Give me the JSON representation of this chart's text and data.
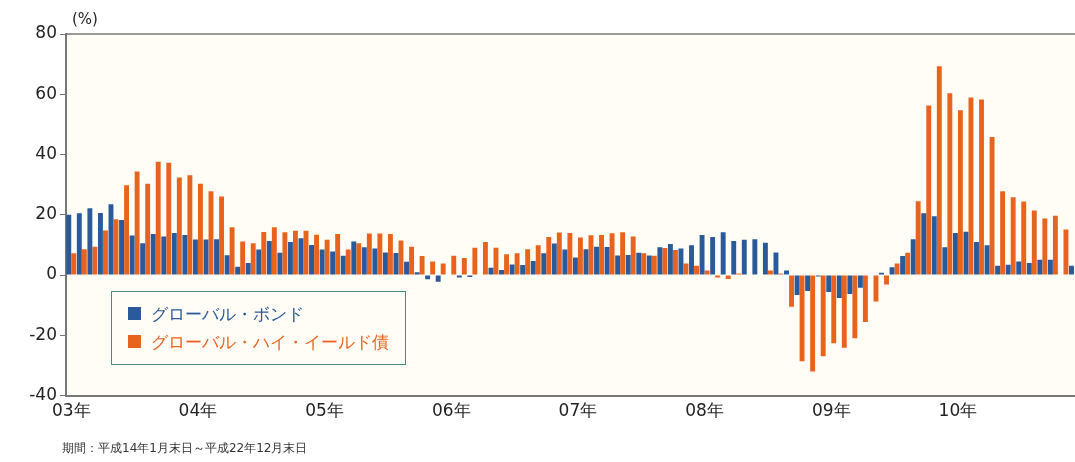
{
  "chart_data": {
    "type": "bar",
    "ylabel": "(%)",
    "categories": [
      "03年",
      null,
      null,
      null,
      null,
      null,
      null,
      null,
      null,
      null,
      null,
      null,
      "04年",
      null,
      null,
      null,
      null,
      null,
      null,
      null,
      null,
      null,
      null,
      null,
      "05年",
      null,
      null,
      null,
      null,
      null,
      null,
      null,
      null,
      null,
      null,
      null,
      "06年",
      null,
      null,
      null,
      null,
      null,
      null,
      null,
      null,
      null,
      null,
      null,
      "07年",
      null,
      null,
      null,
      null,
      null,
      null,
      null,
      null,
      null,
      null,
      null,
      "08年",
      null,
      null,
      null,
      null,
      null,
      null,
      null,
      null,
      null,
      null,
      null,
      "09年",
      null,
      null,
      null,
      null,
      null,
      null,
      null,
      null,
      null,
      null,
      null,
      "10年",
      null,
      null,
      null,
      null,
      null,
      null,
      null,
      null,
      null,
      null,
      null
    ],
    "series": [
      {
        "name": "グローバル・ボンド",
        "color": "#2a5a9a",
        "values": [
          20.0,
          20.5,
          22.2,
          20.6,
          23.5,
          18.3,
          13.1,
          10.6,
          13.6,
          12.8,
          14.0,
          13.3,
          11.8,
          11.8,
          11.9,
          6.6,
          2.8,
          4.0,
          8.5,
          11.3,
          7.4,
          11.0,
          12.2,
          10.0,
          8.5,
          7.8,
          6.4,
          11.1,
          9.2,
          8.8,
          7.5,
          7.3,
          4.4,
          0.9,
          -1.4,
          -2.2,
          null,
          -0.8,
          -0.6,
          null,
          2.4,
          1.7,
          3.5,
          3.3,
          4.7,
          7.2,
          10.5,
          8.5,
          5.8,
          8.6,
          9.4,
          9.3,
          6.5,
          6.7,
          7.4,
          6.5,
          9.2,
          10.3,
          8.8,
          9.9,
          13.3,
          12.6,
          14.2,
          11.3,
          11.7,
          11.9,
          10.7,
          7.5,
          1.5,
          -6.6,
          -5.3,
          -0.5,
          -5.6,
          -7.6,
          -6.3,
          -4.2,
          0,
          0.8,
          2.6,
          6.3,
          11.9,
          20.5,
          19.5,
          9.2,
          14.0,
          14.4,
          11.0,
          9.9,
          3.1,
          3.4,
          4.5,
          4.0,
          5.1,
          5.1,
          null,
          3.1
        ]
      },
      {
        "name": "グローバル・ハイ・イールド債",
        "color": "#e8641e",
        "values": [
          7.2,
          8.6,
          9.4,
          14.8,
          18.5,
          29.8,
          34.4,
          30.3,
          37.6,
          37.3,
          32.4,
          33.1,
          30.3,
          27.8,
          26.1,
          15.9,
          11.1,
          10.6,
          14.3,
          15.9,
          14.2,
          14.7,
          14.7,
          13.4,
          11.7,
          13.6,
          8.5,
          10.6,
          13.8,
          13.8,
          13.6,
          11.5,
          9.4,
          6.3,
          4.5,
          3.8,
          6.4,
          5.7,
          9.1,
          11.0,
          9.1,
          6.9,
          7.2,
          8.6,
          9.9,
          12.6,
          14.1,
          14.0,
          12.5,
          13.2,
          13.3,
          13.9,
          14.2,
          12.8,
          7.2,
          6.4,
          9.0,
          8.3,
          3.8,
          3.1,
          1.5,
          -0.8,
          -1.3,
          0.5,
          null,
          null,
          1.5,
          0.5,
          -10.5,
          -28.6,
          -32.0,
          -26.9,
          -22.6,
          -24.1,
          -21.0,
          -15.6,
          -8.8,
          -3.1,
          3.8,
          7.4,
          24.5,
          56.3,
          69.3,
          60.3,
          54.7,
          58.9,
          58.3,
          45.8,
          27.8,
          25.8,
          24.4,
          21.4,
          18.8,
          19.7,
          15.1,
          null
        ]
      }
    ],
    "ylim": [
      -40,
      80
    ],
    "yticks": [
      -40,
      -20,
      0,
      20,
      40,
      60,
      80
    ],
    "legend": "bottom left",
    "annotations": [
      "期間：平成14年1月末日～平成22年12月末日"
    ]
  }
}
